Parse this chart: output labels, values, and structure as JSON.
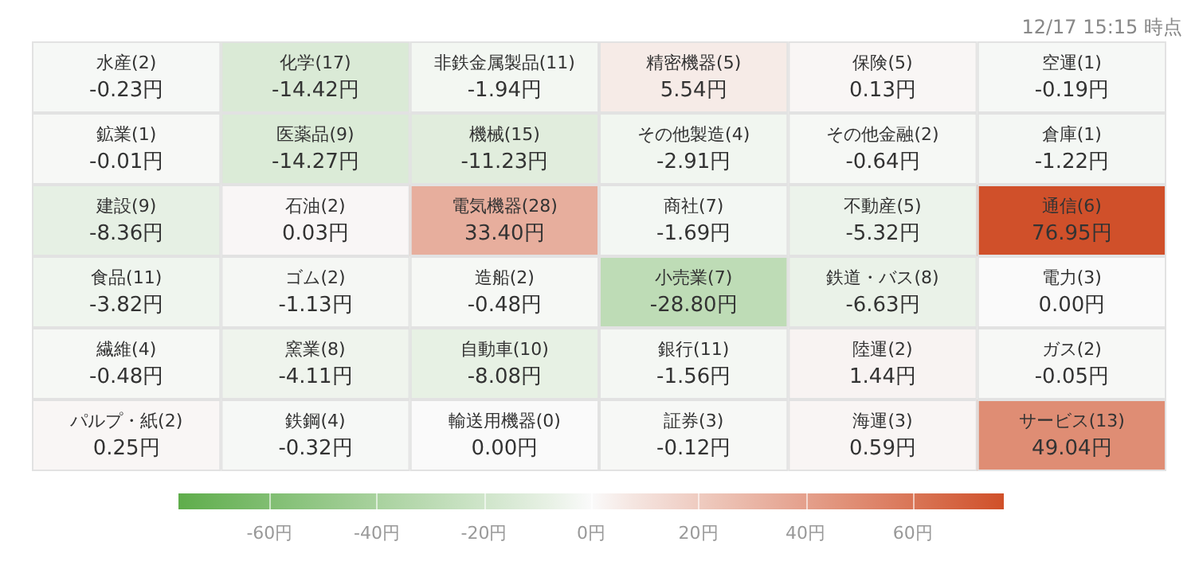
{
  "chart_data": {
    "type": "heatmap",
    "subtitle": "12/17 15:15 時点",
    "categories": [
      null,
      null,
      null,
      null,
      null,
      null
    ],
    "y_categories": [
      null,
      null,
      null,
      null,
      null,
      null
    ],
    "cells": [
      [
        -0.23,
        -14.42,
        -1.94,
        5.54,
        0.13,
        -0.19
      ],
      [
        -0.01,
        -14.27,
        -11.23,
        -2.91,
        -0.64,
        -1.22
      ],
      [
        -8.36,
        0.03,
        33.4,
        -1.69,
        -5.32,
        76.95
      ],
      [
        -3.82,
        -1.13,
        -0.48,
        -28.8,
        -6.63,
        0.0
      ],
      [
        -0.48,
        -4.11,
        -8.08,
        -1.56,
        1.44,
        -0.05
      ],
      [
        0.25,
        -0.32,
        0.0,
        -0.12,
        0.59,
        49.04
      ]
    ],
    "cell_labels": [
      [
        "水産(2)\n-0.23円",
        "化学(17)\n-14.42円",
        "非鉄金属製品(11)\n-1.94円",
        "精密機器(5)\n5.54円",
        "保険(5)\n0.13円",
        "空運(1)\n-0.19円"
      ],
      [
        "鉱業(1)\n-0.01円",
        "医薬品(9)\n-14.27円",
        "機械(15)\n-11.23円",
        "その他製造(4)\n-2.91円",
        "その他金融(2)\n-0.64円",
        "倉庫(1)\n-1.22円"
      ],
      [
        "建設(9)\n-8.36円",
        "石油(2)\n0.03円",
        "電気機器(28)\n33.40円",
        "商社(7)\n-1.69円",
        "不動産(5)\n-5.32円",
        "通信(6)\n76.95円"
      ],
      [
        "食品(11)\n-3.82円",
        "ゴム(2)\n-1.13円",
        "造船(2)\n-0.48円",
        "小売業(7)\n-28.80円",
        "鉄道・バス(8)\n-6.63円",
        "電力(3)\n0.00円"
      ],
      [
        "繊維(4)\n-0.48円",
        "窯業(8)\n-4.11円",
        "自動車(10)\n-8.08円",
        "銀行(11)\n-1.56円",
        "陸運(2)\n1.44円",
        "ガス(2)\n-0.05円"
      ],
      [
        "パルプ・紙(2)\n0.25円",
        "鉄鋼(4)\n-0.32円",
        "輸送用機器(0)\n0.00円",
        "証券(3)\n-0.12円",
        "海運(3)\n0.59円",
        "サービス(13)\n49.04円"
      ]
    ],
    "clim": [
      -77,
      77
    ],
    "cticks": [
      {
        "value": -60,
        "label": "-60円"
      },
      {
        "value": -40,
        "label": "-40円"
      },
      {
        "value": -20,
        "label": "-20円"
      },
      {
        "value": 0,
        "label": "0円"
      },
      {
        "value": 20,
        "label": "20円"
      },
      {
        "value": 40,
        "label": "40円"
      },
      {
        "value": 60,
        "label": "60円"
      }
    ]
  }
}
